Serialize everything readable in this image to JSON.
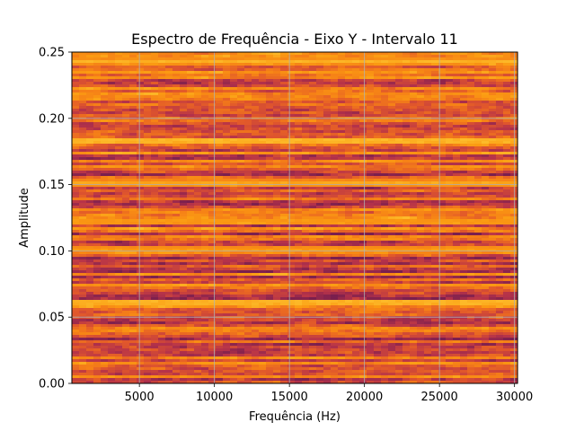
{
  "chart_data": {
    "type": "heatmap",
    "title": "Espectro de Frequência - Eixo Y - Intervalo 11",
    "xlabel": "Frequência (Hz)",
    "ylabel": "Amplitude",
    "xlim": [
      500,
      30200
    ],
    "ylim": [
      0,
      0.25
    ],
    "x_ticks": [
      5000,
      10000,
      15000,
      20000,
      25000,
      30000
    ],
    "x_tick_labels": [
      "5000",
      "10000",
      "15000",
      "20000",
      "25000",
      "30000"
    ],
    "y_ticks": [
      0,
      0.05,
      0.1,
      0.15,
      0.2,
      0.25
    ],
    "y_tick_labels": [
      "0.00",
      "0.05",
      "0.10",
      "0.15",
      "0.20",
      "0.25"
    ],
    "grid": true,
    "colormap": [
      "#7a1f4e",
      "#b5324a",
      "#e0562c",
      "#f57f17",
      "#fb9b12",
      "#fdc02e",
      "#fde35a"
    ],
    "bright_bands": [
      {
        "amplitude": 0.183,
        "intensity": 0.95
      },
      {
        "amplitude": 0.061,
        "intensity": 0.9
      },
      {
        "amplitude": 0.243,
        "intensity": 0.6
      },
      {
        "amplitude": 0.151,
        "intensity": 0.55
      },
      {
        "amplitude": 0.122,
        "intensity": 0.45
      },
      {
        "amplitude": 0.101,
        "intensity": 0.4
      }
    ]
  }
}
